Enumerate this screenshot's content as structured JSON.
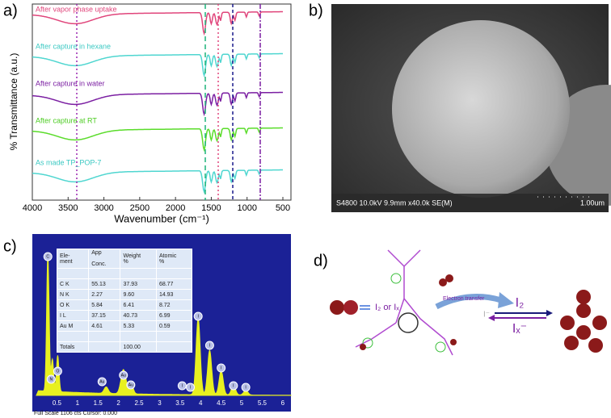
{
  "panel_a": {
    "label": "a)",
    "y_axis_label": "% Transmittance (a.u.)",
    "x_axis_label": "Wavenumber (cm⁻¹)",
    "x_tick_labels": [
      "4000",
      "3500",
      "3000",
      "2500",
      "2000",
      "1500",
      "1000",
      "500"
    ],
    "traces": [
      "After vapor phase uptake",
      "After capture in hexane",
      "After capture in water",
      "After capture at RT",
      "As made TP_POP-7"
    ]
  },
  "panel_b": {
    "label": "b)",
    "info": "S4800 10.0kV 9.9mm x40.0k SE(M)",
    "scale": "1.00um"
  },
  "panel_c": {
    "label": "c)",
    "table": {
      "header": [
        "Ele-\nment",
        "App\n\nConc.",
        "Weight\n%",
        "Atomic\n%"
      ],
      "rows": [
        [
          "C K",
          "55.13",
          "37.93",
          "68.77"
        ],
        [
          "N K",
          "2.27",
          "9.60",
          "14.93"
        ],
        [
          "O K",
          "5.84",
          "6.41",
          "8.72"
        ],
        [
          "I L",
          "37.15",
          "40.73",
          "6.99"
        ],
        [
          "Au M",
          "4.61",
          "5.33",
          "0.59"
        ]
      ],
      "total": [
        "Totals",
        "100.00"
      ]
    },
    "peaks": [
      "C",
      "N",
      "O",
      "Au",
      "Au",
      "Au",
      "I",
      "I",
      "I",
      "I",
      "I",
      "I",
      "I"
    ],
    "x_tick_labels": [
      "0.5",
      "1",
      "1.5",
      "2",
      "2.5",
      "3",
      "3.5",
      "4",
      "4.5",
      "5",
      "5.5",
      "6"
    ],
    "footer": "Full Scale 1106 cts Cursor: 0.000"
  },
  "panel_d": {
    "label": "d)",
    "reagent": "I₂ or Iₓ",
    "arrow_label": "Electron transfer",
    "iodide": "I⁻",
    "top": "I₂",
    "bottom": "Iₓ⁻"
  }
}
